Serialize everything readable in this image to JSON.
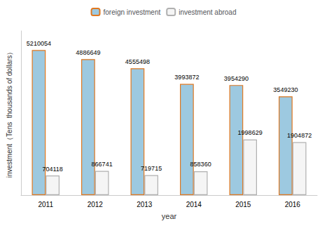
{
  "chart_data": {
    "type": "bar",
    "categories": [
      "2011",
      "2012",
      "2013",
      "2014",
      "2015",
      "2016"
    ],
    "series": [
      {
        "name": "foreign investment",
        "color": "#9dc9e0",
        "values": [
          5210054,
          4886649,
          4555498,
          3993872,
          3954290,
          3549230
        ]
      },
      {
        "name": "investment abroad",
        "color": "#f5f5f5",
        "values": [
          704118,
          866741,
          719715,
          858360,
          1998629,
          1904872
        ]
      }
    ],
    "xlabel": "year",
    "ylabel": "investment（Tens  thousands of dollars）",
    "ylim": [
      0,
      5900000
    ],
    "data_labels": true,
    "tick_labels": "x",
    "grid": false,
    "legend": "top"
  }
}
